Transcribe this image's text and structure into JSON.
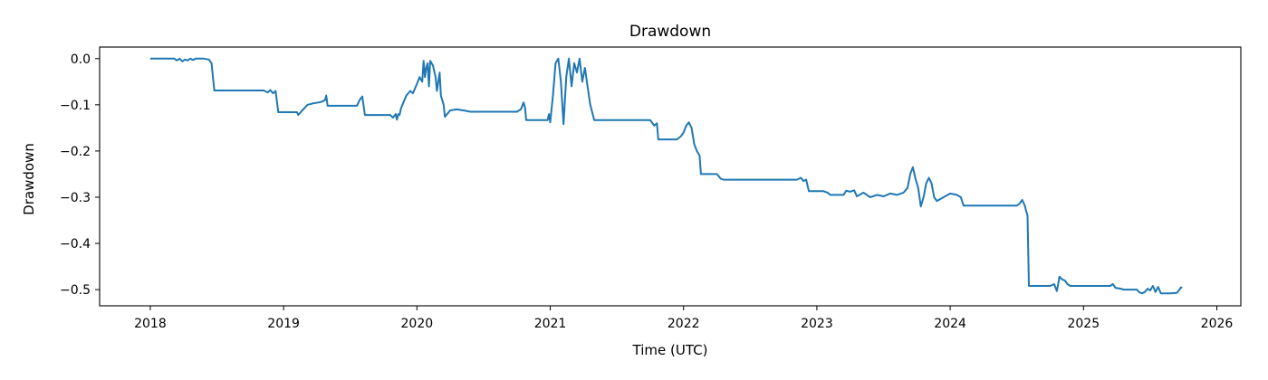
{
  "chart_data": {
    "type": "line",
    "title": "Drawdown",
    "xlabel": "Time (UTC)",
    "ylabel": "Drawdown",
    "xlim": [
      2017.62,
      2026.18
    ],
    "ylim": [
      -0.535,
      0.025
    ],
    "x_ticks": [
      2018,
      2019,
      2020,
      2021,
      2022,
      2023,
      2024,
      2025,
      2026
    ],
    "x_tick_labels": [
      "2018",
      "2019",
      "2020",
      "2021",
      "2022",
      "2023",
      "2024",
      "2025",
      "2026"
    ],
    "y_ticks": [
      0.0,
      -0.1,
      -0.2,
      -0.3,
      -0.4,
      -0.5
    ],
    "y_tick_labels": [
      "0.0",
      "−0.1",
      "−0.2",
      "−0.3",
      "−0.4",
      "−0.5"
    ],
    "grid": false,
    "legend": "none",
    "series": [
      {
        "color": "#1f77b4",
        "x": [
          2018.0,
          2018.18,
          2018.2,
          2018.22,
          2018.24,
          2018.26,
          2018.28,
          2018.3,
          2018.32,
          2018.34,
          2018.36,
          2018.4,
          2018.44,
          2018.46,
          2018.47,
          2018.48,
          2018.6,
          2018.85,
          2018.88,
          2018.9,
          2018.92,
          2018.94,
          2018.96,
          2019.1,
          2019.11,
          2019.14,
          2019.16,
          2019.18,
          2019.22,
          2019.28,
          2019.31,
          2019.32,
          2019.33,
          2019.55,
          2019.57,
          2019.59,
          2019.61,
          2019.8,
          2019.82,
          2019.84,
          2019.85,
          2019.86,
          2019.87,
          2019.88,
          2019.92,
          2019.95,
          2019.97,
          2020.0,
          2020.02,
          2020.04,
          2020.05,
          2020.06,
          2020.07,
          2020.08,
          2020.09,
          2020.1,
          2020.12,
          2020.14,
          2020.15,
          2020.16,
          2020.17,
          2020.18,
          2020.2,
          2020.21,
          2020.25,
          2020.3,
          2020.35,
          2020.4,
          2020.75,
          2020.78,
          2020.8,
          2020.81,
          2020.82,
          2020.98,
          2020.99,
          2021.0,
          2021.02,
          2021.04,
          2021.06,
          2021.08,
          2021.1,
          2021.12,
          2021.14,
          2021.16,
          2021.18,
          2021.2,
          2021.22,
          2021.24,
          2021.26,
          2021.28,
          2021.3,
          2021.33,
          2021.75,
          2021.78,
          2021.8,
          2021.81,
          2021.95,
          2021.98,
          2022.0,
          2022.02,
          2022.04,
          2022.06,
          2022.08,
          2022.1,
          2022.12,
          2022.13,
          2022.25,
          2022.28,
          2022.3,
          2022.85,
          2022.88,
          2022.9,
          2022.92,
          2022.94,
          2023.05,
          2023.08,
          2023.1,
          2023.2,
          2023.22,
          2023.25,
          2023.28,
          2023.3,
          2023.35,
          2023.4,
          2023.45,
          2023.5,
          2023.55,
          2023.6,
          2023.65,
          2023.68,
          2023.7,
          2023.72,
          2023.74,
          2023.76,
          2023.78,
          2023.8,
          2023.82,
          2023.84,
          2023.86,
          2023.88,
          2023.9,
          2024.0,
          2024.05,
          2024.08,
          2024.1,
          2024.5,
          2024.52,
          2024.54,
          2024.56,
          2024.57,
          2024.58,
          2024.59,
          2024.6,
          2024.75,
          2024.78,
          2024.8,
          2024.82,
          2024.84,
          2024.86,
          2024.88,
          2024.9,
          2024.92,
          2025.2,
          2025.22,
          2025.24,
          2025.28,
          2025.3,
          2025.4,
          2025.42,
          2025.44,
          2025.46,
          2025.48,
          2025.5,
          2025.52,
          2025.54,
          2025.56,
          2025.58,
          2025.6,
          2025.65,
          2025.7,
          2025.72,
          2025.73,
          2025.74
        ],
        "y": [
          0.0,
          0.0,
          -0.004,
          0.0,
          -0.006,
          -0.002,
          -0.004,
          0.0,
          -0.003,
          0.0,
          0.0,
          0.0,
          -0.002,
          -0.01,
          -0.04,
          -0.069,
          -0.069,
          -0.069,
          -0.073,
          -0.068,
          -0.075,
          -0.07,
          -0.116,
          -0.116,
          -0.122,
          -0.112,
          -0.106,
          -0.1,
          -0.097,
          -0.094,
          -0.09,
          -0.08,
          -0.102,
          -0.102,
          -0.09,
          -0.082,
          -0.122,
          -0.122,
          -0.128,
          -0.12,
          -0.132,
          -0.12,
          -0.122,
          -0.108,
          -0.08,
          -0.07,
          -0.075,
          -0.055,
          -0.04,
          -0.05,
          -0.005,
          -0.04,
          -0.02,
          -0.01,
          -0.06,
          -0.005,
          -0.015,
          -0.04,
          -0.07,
          -0.05,
          -0.03,
          -0.08,
          -0.1,
          -0.126,
          -0.112,
          -0.11,
          -0.112,
          -0.115,
          -0.115,
          -0.11,
          -0.095,
          -0.105,
          -0.133,
          -0.133,
          -0.12,
          -0.138,
          -0.08,
          -0.01,
          0.0,
          -0.05,
          -0.142,
          -0.04,
          0.0,
          -0.06,
          -0.01,
          -0.03,
          0.0,
          -0.05,
          -0.02,
          -0.06,
          -0.1,
          -0.133,
          -0.133,
          -0.145,
          -0.14,
          -0.175,
          -0.175,
          -0.168,
          -0.16,
          -0.145,
          -0.138,
          -0.15,
          -0.185,
          -0.2,
          -0.21,
          -0.25,
          -0.25,
          -0.26,
          -0.262,
          -0.262,
          -0.258,
          -0.265,
          -0.262,
          -0.287,
          -0.287,
          -0.29,
          -0.295,
          -0.295,
          -0.286,
          -0.288,
          -0.285,
          -0.298,
          -0.29,
          -0.3,
          -0.295,
          -0.298,
          -0.292,
          -0.295,
          -0.29,
          -0.28,
          -0.25,
          -0.235,
          -0.26,
          -0.28,
          -0.32,
          -0.3,
          -0.27,
          -0.258,
          -0.27,
          -0.3,
          -0.308,
          -0.292,
          -0.295,
          -0.3,
          -0.318,
          -0.318,
          -0.314,
          -0.306,
          -0.318,
          -0.33,
          -0.34,
          -0.492,
          -0.492,
          -0.492,
          -0.488,
          -0.503,
          -0.472,
          -0.478,
          -0.48,
          -0.488,
          -0.492,
          -0.492,
          -0.492,
          -0.488,
          -0.496,
          -0.498,
          -0.5,
          -0.5,
          -0.506,
          -0.508,
          -0.505,
          -0.498,
          -0.502,
          -0.492,
          -0.505,
          -0.494,
          -0.508,
          -0.508,
          -0.508,
          -0.507,
          -0.5,
          -0.495,
          -0.496
        ]
      }
    ]
  }
}
